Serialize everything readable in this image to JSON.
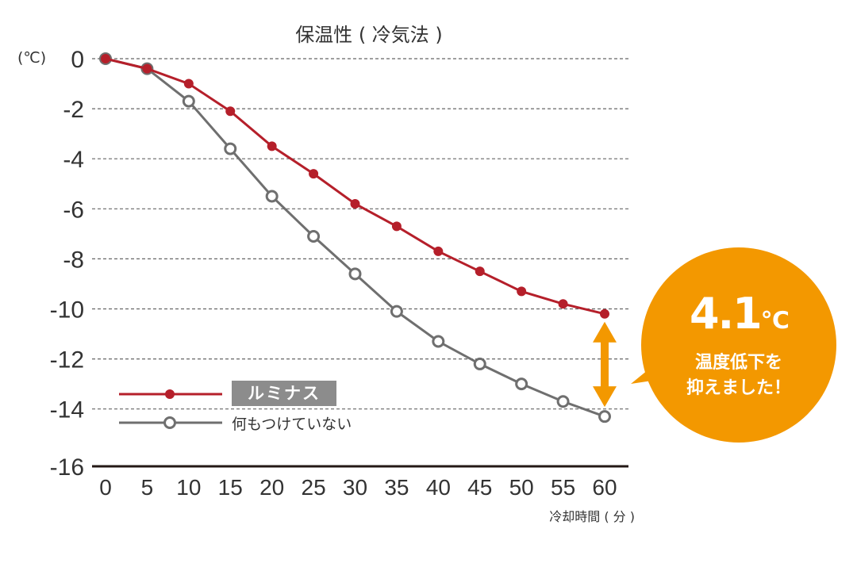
{
  "chart_data": {
    "type": "line",
    "title": "保温性 ( 冷気法 )",
    "ylabel": "(℃)",
    "xlabel": "冷却時間 ( 分 )",
    "x": [
      0,
      5,
      10,
      15,
      20,
      25,
      30,
      35,
      40,
      45,
      50,
      55,
      60
    ],
    "ylim": [
      -16,
      0
    ],
    "xlim": [
      0,
      60
    ],
    "yticks": [
      0,
      -2,
      -4,
      -6,
      -8,
      -10,
      -12,
      -14,
      -16
    ],
    "grid": true,
    "legend_position": "bottom-left",
    "series": [
      {
        "name": "ルミナス",
        "color": "#b51f2a",
        "marker": "filled-circle",
        "values": [
          0,
          -0.4,
          -1.0,
          -2.1,
          -3.5,
          -4.6,
          -5.8,
          -6.7,
          -7.7,
          -8.5,
          -9.3,
          -9.8,
          -10.2
        ]
      },
      {
        "name": "何もつけていない",
        "color": "#6f6f6f",
        "marker": "open-circle",
        "values": [
          0,
          -0.4,
          -1.7,
          -3.6,
          -5.5,
          -7.1,
          -8.6,
          -10.1,
          -11.3,
          -12.2,
          -13.0,
          -13.7,
          -14.3
        ]
      }
    ],
    "annotation": {
      "value": "4.1",
      "unit": "℃",
      "line1": "温度低下を",
      "line2": "抑えました！",
      "color": "#f39800"
    }
  }
}
